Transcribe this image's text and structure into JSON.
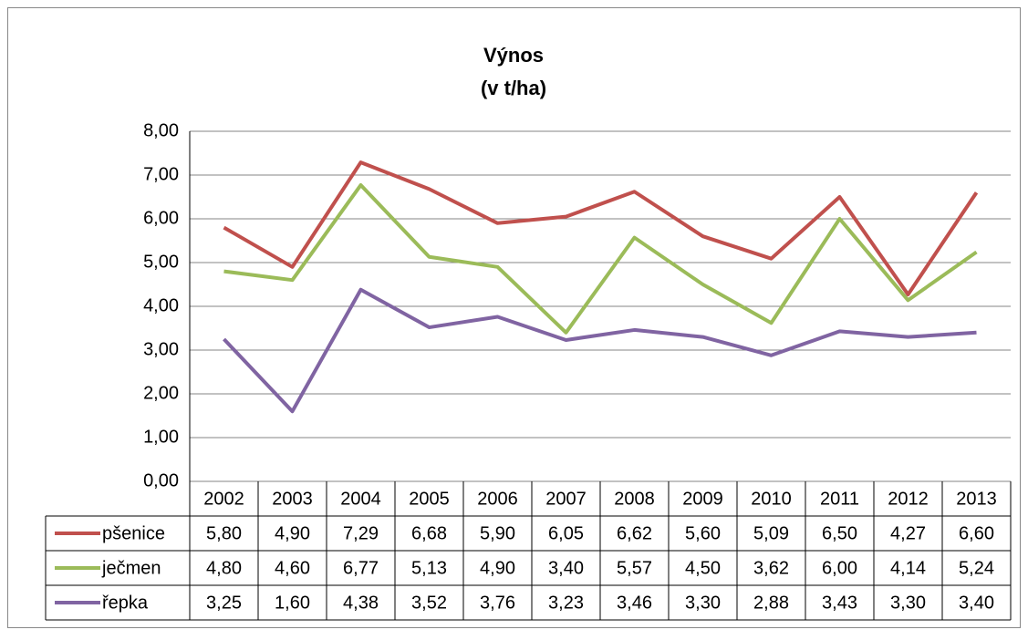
{
  "chart_data": {
    "type": "line",
    "title": "Výnos",
    "subtitle": "(v t/ha)",
    "categories": [
      "2002",
      "2003",
      "2004",
      "2005",
      "2006",
      "2007",
      "2008",
      "2009",
      "2010",
      "2011",
      "2012",
      "2013"
    ],
    "series": [
      {
        "name": "pšenice",
        "color": "#c0504d",
        "values": [
          5.8,
          4.9,
          7.29,
          6.68,
          5.9,
          6.05,
          6.62,
          5.6,
          5.09,
          6.5,
          4.27,
          6.6
        ],
        "value_labels": [
          "5,80",
          "4,90",
          "7,29",
          "6,68",
          "5,90",
          "6,05",
          "6,62",
          "5,60",
          "5,09",
          "6,50",
          "4,27",
          "6,60"
        ]
      },
      {
        "name": "ječmen",
        "color": "#9bbb59",
        "values": [
          4.8,
          4.6,
          6.77,
          5.13,
          4.9,
          3.4,
          5.57,
          4.5,
          3.62,
          6.0,
          4.14,
          5.24
        ],
        "value_labels": [
          "4,80",
          "4,60",
          "6,77",
          "5,13",
          "4,90",
          "3,40",
          "5,57",
          "4,50",
          "3,62",
          "6,00",
          "4,14",
          "5,24"
        ]
      },
      {
        "name": "řepka",
        "color": "#8064a2",
        "values": [
          3.25,
          1.6,
          4.38,
          3.52,
          3.76,
          3.23,
          3.46,
          3.3,
          2.88,
          3.43,
          3.3,
          3.4
        ],
        "value_labels": [
          "3,25",
          "1,60",
          "4,38",
          "3,52",
          "3,76",
          "3,23",
          "3,46",
          "3,30",
          "2,88",
          "3,43",
          "3,30",
          "3,40"
        ]
      }
    ],
    "ylim": [
      0,
      8
    ],
    "yticks": [
      {
        "value": 0,
        "label": "0,00"
      },
      {
        "value": 1,
        "label": "1,00"
      },
      {
        "value": 2,
        "label": "2,00"
      },
      {
        "value": 3,
        "label": "3,00"
      },
      {
        "value": 4,
        "label": "4,00"
      },
      {
        "value": 5,
        "label": "5,00"
      },
      {
        "value": 6,
        "label": "6,00"
      },
      {
        "value": 7,
        "label": "7,00"
      },
      {
        "value": 8,
        "label": "8,00"
      }
    ],
    "grid": true
  }
}
